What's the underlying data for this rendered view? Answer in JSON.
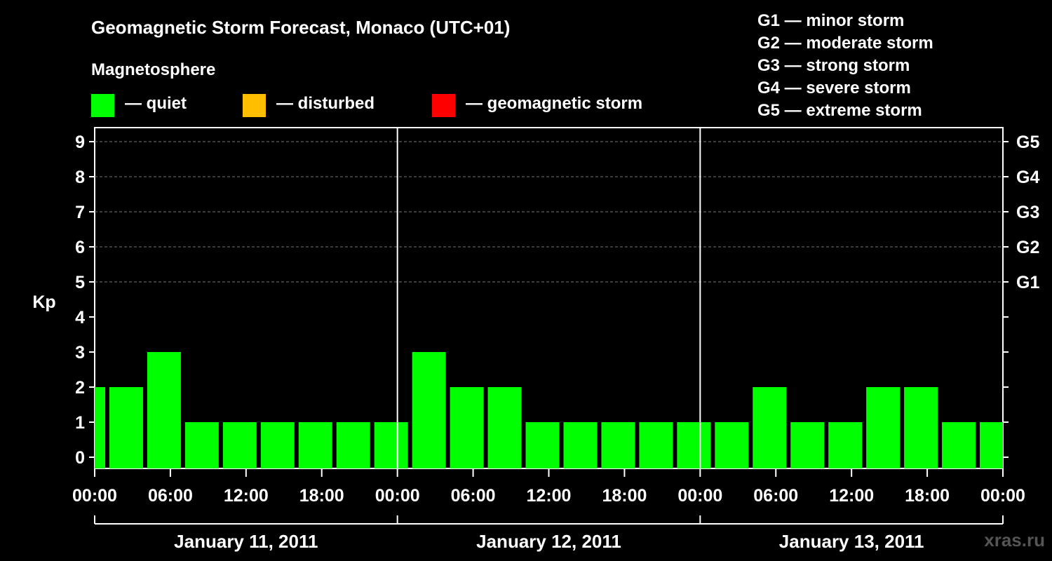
{
  "header": {
    "title": "Geomagnetic Storm Forecast, Monaco (UTC+01)",
    "subtitle": "Magnetosphere"
  },
  "legend": {
    "items": [
      {
        "label": "— quiet",
        "color": "#00ff00"
      },
      {
        "label": "— disturbed",
        "color": "#ffbf00"
      },
      {
        "label": "— geomagnetic storm",
        "color": "#ff0000"
      }
    ]
  },
  "g_scale": {
    "items": [
      "G1 — minor storm",
      "G2 — moderate storm",
      "G3 — strong storm",
      "G4 — severe storm",
      "G5 — extreme storm"
    ]
  },
  "watermark": "xras.ru",
  "chart_data": {
    "type": "bar",
    "ylabel": "Kp",
    "ylim": [
      0,
      9
    ],
    "y_ticks": [
      "0",
      "1",
      "2",
      "3",
      "4",
      "5",
      "6",
      "7",
      "8",
      "9"
    ],
    "right_axis_labels": [
      {
        "kp": 5,
        "label": "G1"
      },
      {
        "kp": 6,
        "label": "G2"
      },
      {
        "kp": 7,
        "label": "G3"
      },
      {
        "kp": 8,
        "label": "G4"
      },
      {
        "kp": 9,
        "label": "G5"
      }
    ],
    "x_ticks": [
      "00:00",
      "06:00",
      "12:00",
      "18:00",
      "00:00",
      "06:00",
      "12:00",
      "18:00",
      "00:00",
      "06:00",
      "12:00",
      "18:00",
      "00:00"
    ],
    "days": [
      "January 11, 2011",
      "January 12, 2011",
      "January 13, 2011"
    ],
    "interval_hours": 3,
    "start_hour": -2,
    "grid": "dashed horizontal lines at Kp 5-9",
    "color_quiet": "#00ff00",
    "values": [
      2,
      2,
      3,
      1,
      1,
      1,
      1,
      1,
      1,
      3,
      2,
      2,
      1,
      1,
      1,
      1,
      1,
      1,
      2,
      1,
      1,
      2,
      2,
      1,
      1
    ]
  }
}
